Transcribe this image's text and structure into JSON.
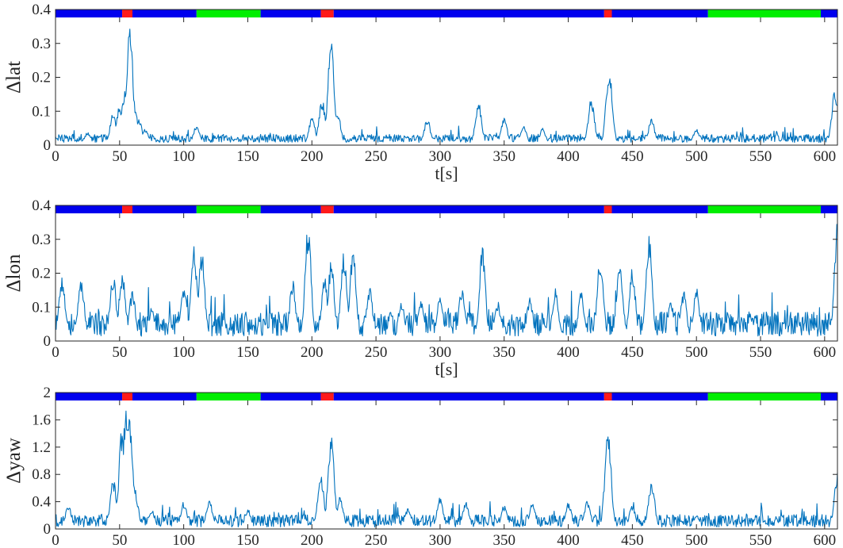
{
  "chart_data": [
    {
      "type": "line",
      "ylabel": "Δlat",
      "xlabel": "t[s]",
      "xlim": [
        0,
        610
      ],
      "ylim": [
        0,
        0.4
      ],
      "xticks": [
        "0",
        "50",
        "100",
        "150",
        "200",
        "250",
        "300",
        "350",
        "400",
        "450",
        "500",
        "550",
        "600"
      ],
      "yticks": [
        "0",
        "0.1",
        "0.2",
        "0.3",
        "0.4"
      ],
      "baseline": 0.02,
      "noise": 0.02,
      "peaks": [
        [
          25,
          0.04
        ],
        [
          45,
          0.1
        ],
        [
          50,
          0.12
        ],
        [
          54,
          0.16
        ],
        [
          58,
          0.36
        ],
        [
          62,
          0.1
        ],
        [
          65,
          0.08
        ],
        [
          70,
          0.05
        ],
        [
          110,
          0.06
        ],
        [
          200,
          0.08
        ],
        [
          208,
          0.14
        ],
        [
          215,
          0.32
        ],
        [
          220,
          0.1
        ],
        [
          290,
          0.08
        ],
        [
          330,
          0.13
        ],
        [
          350,
          0.08
        ],
        [
          365,
          0.06
        ],
        [
          380,
          0.05
        ],
        [
          418,
          0.14
        ],
        [
          432,
          0.24
        ],
        [
          465,
          0.08
        ],
        [
          500,
          0.05
        ],
        [
          608,
          0.17
        ]
      ],
      "series": [
        {
          "values_desc": "tracking error"
        }
      ]
    },
    {
      "type": "line",
      "ylabel": "Δlon",
      "xlabel": "t[s]",
      "xlim": [
        0,
        610
      ],
      "ylim": [
        0,
        0.4
      ],
      "xticks": [
        "0",
        "50",
        "100",
        "150",
        "200",
        "250",
        "300",
        "350",
        "400",
        "450",
        "500",
        "550",
        "600"
      ],
      "yticks": [
        "0",
        "0.1",
        "0.2",
        "0.3",
        "0.4"
      ],
      "baseline": 0.05,
      "noise": 0.06,
      "peaks": [
        [
          5,
          0.2
        ],
        [
          20,
          0.19
        ],
        [
          45,
          0.2
        ],
        [
          52,
          0.21
        ],
        [
          60,
          0.15
        ],
        [
          75,
          0.1
        ],
        [
          100,
          0.17
        ],
        [
          108,
          0.28
        ],
        [
          114,
          0.27
        ],
        [
          160,
          0.01
        ],
        [
          185,
          0.18
        ],
        [
          197,
          0.34
        ],
        [
          210,
          0.19
        ],
        [
          215,
          0.24
        ],
        [
          225,
          0.27
        ],
        [
          232,
          0.28
        ],
        [
          245,
          0.16
        ],
        [
          270,
          0.12
        ],
        [
          285,
          0.12
        ],
        [
          300,
          0.14
        ],
        [
          317,
          0.16
        ],
        [
          333,
          0.28
        ],
        [
          345,
          0.12
        ],
        [
          370,
          0.13
        ],
        [
          390,
          0.16
        ],
        [
          410,
          0.15
        ],
        [
          425,
          0.26
        ],
        [
          440,
          0.23
        ],
        [
          450,
          0.22
        ],
        [
          463,
          0.32
        ],
        [
          480,
          0.12
        ],
        [
          490,
          0.15
        ],
        [
          500,
          0.16
        ],
        [
          610,
          0.36
        ]
      ],
      "series": [
        {
          "values_desc": "tracking error"
        }
      ]
    },
    {
      "type": "line",
      "ylabel": "Δyaw",
      "xlabel": "",
      "xlim": [
        0,
        610
      ],
      "ylim": [
        0,
        2
      ],
      "xticks": [
        "0",
        "50",
        "100",
        "150",
        "200",
        "250",
        "300",
        "350",
        "400",
        "450",
        "500",
        "550",
        "600"
      ],
      "yticks": [
        "0",
        "0.4",
        "0.8",
        "1.2",
        "1.6",
        "2"
      ],
      "baseline": 0.12,
      "noise": 0.15,
      "peaks": [
        [
          10,
          0.35
        ],
        [
          45,
          0.75
        ],
        [
          52,
          1.55
        ],
        [
          55,
          1.8
        ],
        [
          58,
          1.7
        ],
        [
          62,
          0.6
        ],
        [
          75,
          0.3
        ],
        [
          100,
          0.4
        ],
        [
          120,
          0.45
        ],
        [
          150,
          0.3
        ],
        [
          207,
          0.8
        ],
        [
          215,
          1.4
        ],
        [
          222,
          0.5
        ],
        [
          275,
          0.3
        ],
        [
          300,
          0.48
        ],
        [
          320,
          0.4
        ],
        [
          350,
          0.35
        ],
        [
          372,
          0.4
        ],
        [
          400,
          0.4
        ],
        [
          415,
          0.42
        ],
        [
          431,
          1.5
        ],
        [
          450,
          0.35
        ],
        [
          465,
          0.72
        ],
        [
          500,
          0.2
        ],
        [
          610,
          0.85
        ]
      ],
      "series": [
        {
          "values_desc": "tracking error"
        }
      ]
    }
  ],
  "mode_bar": {
    "segments": [
      {
        "start": 0,
        "end": 52,
        "color": "#0000EE"
      },
      {
        "start": 52,
        "end": 60,
        "color": "#FF1A1A"
      },
      {
        "start": 60,
        "end": 110,
        "color": "#0000EE"
      },
      {
        "start": 110,
        "end": 160,
        "color": "#00EE00"
      },
      {
        "start": 160,
        "end": 207,
        "color": "#0000EE"
      },
      {
        "start": 207,
        "end": 217,
        "color": "#FF1A1A"
      },
      {
        "start": 217,
        "end": 428,
        "color": "#0000EE"
      },
      {
        "start": 428,
        "end": 434,
        "color": "#FF1A1A"
      },
      {
        "start": 434,
        "end": 509,
        "color": "#0000EE"
      },
      {
        "start": 509,
        "end": 597,
        "color": "#00EE00"
      },
      {
        "start": 597,
        "end": 610,
        "color": "#0000EE"
      }
    ]
  },
  "colors": {
    "line": "#0072BD",
    "axis": "#262626"
  }
}
